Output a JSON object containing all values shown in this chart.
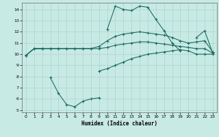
{
  "xlabel": "Humidex (Indice chaleur)",
  "background_color": "#c8eae4",
  "grid_color": "#aad4cc",
  "line_color": "#1a6b60",
  "x": [
    0,
    1,
    2,
    3,
    4,
    5,
    6,
    7,
    8,
    9,
    10,
    11,
    12,
    13,
    14,
    15,
    16,
    17,
    18,
    19,
    20,
    21,
    22,
    23
  ],
  "line_top": [
    9.9,
    10.5,
    10.5,
    null,
    null,
    null,
    null,
    null,
    null,
    null,
    12.2,
    14.3,
    14.0,
    13.9,
    14.3,
    14.2,
    13.1,
    12.1,
    11.0,
    10.3,
    null,
    11.5,
    12.1,
    10.1
  ],
  "line_upper": [
    9.9,
    10.5,
    10.5,
    10.5,
    10.5,
    10.5,
    10.5,
    10.5,
    10.5,
    10.7,
    11.2,
    11.6,
    11.8,
    11.9,
    12.0,
    11.9,
    11.8,
    11.7,
    11.5,
    11.2,
    11.0,
    11.1,
    11.2,
    10.2
  ],
  "line_mean": [
    9.9,
    10.5,
    10.5,
    10.5,
    10.5,
    10.5,
    10.5,
    10.5,
    10.5,
    10.5,
    10.6,
    10.8,
    10.9,
    11.0,
    11.1,
    11.1,
    11.0,
    10.9,
    10.8,
    10.7,
    10.6,
    10.5,
    10.5,
    10.1
  ],
  "line_bottom": [
    9.9,
    null,
    null,
    null,
    null,
    null,
    null,
    null,
    null,
    8.5,
    8.7,
    9.0,
    9.3,
    9.6,
    9.8,
    10.0,
    10.1,
    10.2,
    10.3,
    10.4,
    10.3,
    10.0,
    10.0,
    10.0
  ],
  "line_min": [
    9.9,
    null,
    null,
    7.9,
    6.5,
    5.5,
    5.3,
    5.8,
    6.0,
    6.1,
    null,
    null,
    null,
    null,
    null,
    null,
    null,
    null,
    null,
    null,
    null,
    null,
    null,
    null
  ],
  "ylim": [
    4.8,
    14.6
  ],
  "xlim": [
    -0.5,
    23.5
  ],
  "yticks": [
    5,
    6,
    7,
    8,
    9,
    10,
    11,
    12,
    13,
    14
  ],
  "xticks": [
    0,
    1,
    2,
    3,
    4,
    5,
    6,
    7,
    8,
    9,
    10,
    11,
    12,
    13,
    14,
    15,
    16,
    17,
    18,
    19,
    20,
    21,
    22,
    23
  ]
}
